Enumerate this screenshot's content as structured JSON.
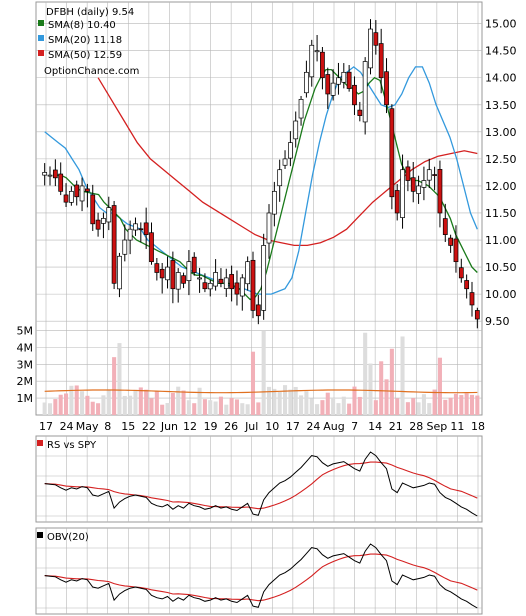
{
  "chart_data": {
    "type": "candlestick",
    "title": "DFBH (daily) 9.54",
    "legend": [
      {
        "label": "SMA(8) 10.40",
        "color": "#1a7a1a"
      },
      {
        "label": "SMA(20) 11.18",
        "color": "#3399dd"
      },
      {
        "label": "SMA(50) 12.59",
        "color": "#d42020"
      }
    ],
    "watermark": "OptionChance.com",
    "price_axis": {
      "ylim": [
        9.3,
        15.4
      ],
      "ticks": [
        "15.00",
        "14.50",
        "14.00",
        "13.50",
        "13.00",
        "12.50",
        "12.00",
        "11.50",
        "11.00",
        "10.50",
        "10.00",
        "9.50"
      ]
    },
    "volume_axis": {
      "ylim": [
        0,
        5500000
      ],
      "ticks": [
        "5M",
        "4M",
        "3M",
        "2M",
        "1M"
      ]
    },
    "x_ticks": [
      "17",
      "24",
      "May",
      "8",
      "15",
      "22",
      "Jun",
      "12",
      "19",
      "26",
      "Jul",
      "10",
      "17",
      "24",
      "Aug",
      "7",
      "14",
      "21",
      "28",
      "Sep",
      "11",
      "18"
    ],
    "close": [
      12.25,
      12.2,
      12.15,
      11.9,
      11.7,
      11.9,
      11.8,
      12.0,
      11.9,
      11.3,
      11.2,
      11.4,
      11.6,
      10.2,
      10.7,
      11.0,
      11.2,
      11.3,
      11.2,
      11.1,
      10.6,
      10.4,
      10.3,
      10.5,
      10.1,
      10.4,
      10.2,
      10.6,
      10.4,
      10.3,
      10.1,
      10.2,
      10.4,
      10.2,
      10.3,
      10.1,
      10.0,
      10.3,
      10.6,
      9.7,
      9.6,
      10.9,
      11.5,
      11.9,
      12.3,
      12.5,
      12.8,
      13.2,
      13.6,
      14.1,
      14.6,
      14.5,
      14.0,
      13.7,
      13.9,
      14.0,
      14.1,
      13.8,
      13.5,
      13.3,
      14.3,
      14.9,
      14.6,
      14.0,
      13.5,
      11.8,
      11.5,
      12.3,
      12.1,
      11.9,
      12.0,
      12.1,
      12.3,
      12.2,
      11.5,
      11.1,
      10.9,
      10.6,
      10.3,
      10.1,
      9.8,
      9.54
    ],
    "sma8": [
      12.2,
      12.2,
      12.15,
      12.05,
      11.95,
      11.9,
      11.88,
      11.86,
      11.84,
      11.7,
      11.6,
      11.5,
      11.4,
      11.2,
      11.1,
      11.0,
      10.95,
      10.9,
      10.85,
      10.8,
      10.75,
      10.7,
      10.65,
      10.6,
      10.5,
      10.4,
      10.35,
      10.35,
      10.3,
      10.25,
      10.2,
      10.2,
      10.2,
      10.15,
      10.1,
      10.0,
      9.9,
      9.95,
      10.1,
      10.4,
      10.8,
      11.2,
      11.6,
      12.0,
      12.4,
      12.8,
      13.2,
      13.5,
      13.8,
      14.0,
      14.15,
      14.15,
      14.05,
      13.95,
      13.85,
      13.8,
      13.7,
      13.75,
      13.9,
      14.0,
      13.95,
      13.6,
      13.2,
      12.8,
      12.4,
      12.2,
      12.1,
      12.1,
      12.05,
      12.0,
      11.9,
      11.8,
      11.6,
      11.4,
      11.1,
      10.9,
      10.7,
      10.5,
      10.4
    ],
    "sma20": [
      13.0,
      12.9,
      12.8,
      12.7,
      12.5,
      12.3,
      12.0,
      11.8,
      11.6,
      11.5,
      11.5,
      11.4,
      11.3,
      11.25,
      11.2,
      11.0,
      10.9,
      10.8,
      10.7,
      10.6,
      10.5,
      10.45,
      10.4,
      10.35,
      10.3,
      10.25,
      10.2,
      10.15,
      10.1,
      10.1,
      10.05,
      10.0,
      10.0,
      10.0,
      10.05,
      10.1,
      10.3,
      10.8,
      11.5,
      12.2,
      12.8,
      13.3,
      13.7,
      14.0,
      14.1,
      14.2,
      14.1,
      13.9,
      13.7,
      13.5,
      13.45,
      13.5,
      13.7,
      14.0,
      14.2,
      14.2,
      13.9,
      13.5,
      13.2,
      12.9,
      12.5,
      12.0,
      11.5,
      11.2
    ],
    "sma50": [
      14.0,
      13.6,
      13.2,
      12.8,
      12.5,
      12.3,
      12.1,
      11.9,
      11.7,
      11.55,
      11.4,
      11.25,
      11.1,
      11.0,
      10.95,
      10.9,
      10.9,
      10.95,
      11.05,
      11.2,
      11.45,
      11.7,
      11.9,
      12.1,
      12.3,
      12.45,
      12.55,
      12.6,
      12.65,
      12.6
    ]
  },
  "panels": {
    "rs": {
      "label": "RS vs SPY"
    },
    "obv": {
      "label": "OBV(20)"
    }
  }
}
